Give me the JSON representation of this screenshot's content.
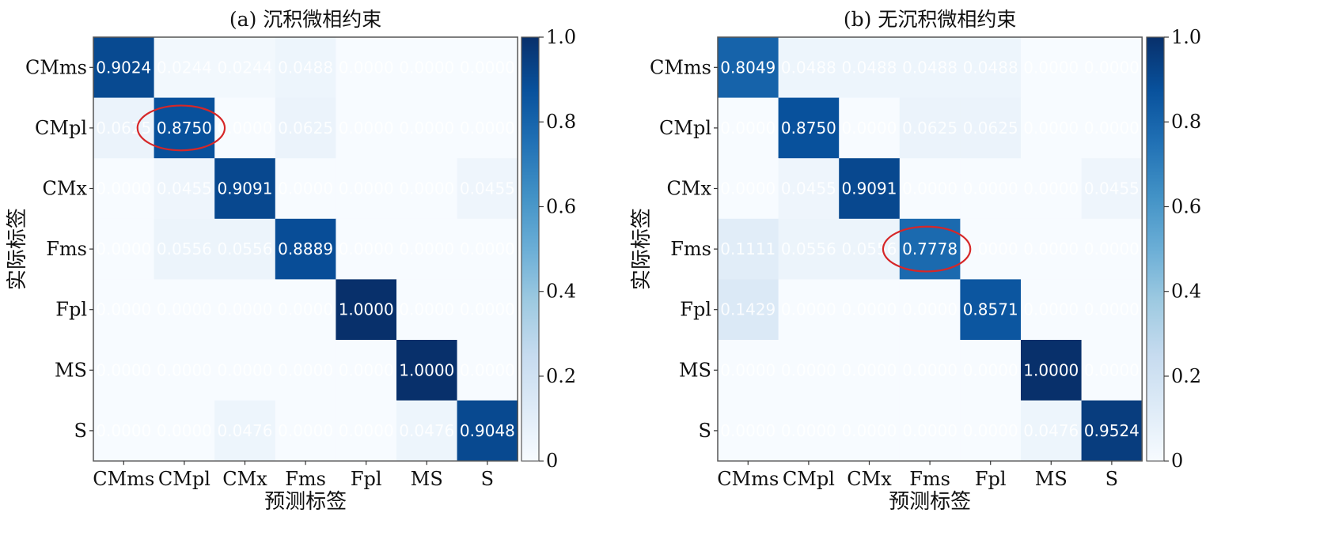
{
  "chart_data": [
    {
      "type": "heatmap",
      "title": "(a) 沉积微相约束",
      "xlabel": "预测标签",
      "ylabel": "实际标签",
      "x_categories": [
        "CMms",
        "CMpl",
        "CMx",
        "Fms",
        "Fpl",
        "MS",
        "S"
      ],
      "y_categories": [
        "CMms",
        "CMpl",
        "CMx",
        "Fms",
        "Fpl",
        "MS",
        "S"
      ],
      "values": [
        [
          0.9024,
          0.0244,
          0.0244,
          0.0488,
          0.0,
          0.0,
          0.0
        ],
        [
          0.0625,
          0.875,
          0.0,
          0.0625,
          0.0,
          0.0,
          0.0
        ],
        [
          0.0,
          0.0455,
          0.9091,
          0.0,
          0.0,
          0.0,
          0.0455
        ],
        [
          0.0,
          0.0556,
          0.0556,
          0.8889,
          0.0,
          0.0,
          0.0
        ],
        [
          0.0,
          0.0,
          0.0,
          0.0,
          1.0,
          0.0,
          0.0
        ],
        [
          0.0,
          0.0,
          0.0,
          0.0,
          0.0,
          1.0,
          0.0
        ],
        [
          0.0,
          0.0,
          0.0476,
          0.0,
          0.0,
          0.0476,
          0.9048
        ]
      ],
      "value_range": [
        0,
        1
      ],
      "colorbar_ticks": [
        "0",
        "0.2",
        "0.4",
        "0.6",
        "0.8",
        "1.0"
      ],
      "colormap": "Blues",
      "highlight": {
        "row": 1,
        "col": 1,
        "shape": "ellipse",
        "color": "#d62728"
      }
    },
    {
      "type": "heatmap",
      "title": "(b) 无沉积微相约束",
      "xlabel": "预测标签",
      "ylabel": "实际标签",
      "x_categories": [
        "CMms",
        "CMpl",
        "CMx",
        "Fms",
        "Fpl",
        "MS",
        "S"
      ],
      "y_categories": [
        "CMms",
        "CMpl",
        "CMx",
        "Fms",
        "Fpl",
        "MS",
        "S"
      ],
      "values": [
        [
          0.8049,
          0.0488,
          0.0488,
          0.0488,
          0.0488,
          0.0,
          0.0
        ],
        [
          0.0,
          0.875,
          0.0,
          0.0625,
          0.0625,
          0.0,
          0.0
        ],
        [
          0.0,
          0.0455,
          0.9091,
          0.0,
          0.0,
          0.0,
          0.0455
        ],
        [
          0.1111,
          0.0556,
          0.0556,
          0.7778,
          0.0,
          0.0,
          0.0
        ],
        [
          0.1429,
          0.0,
          0.0,
          0.0,
          0.8571,
          0.0,
          0.0
        ],
        [
          0.0,
          0.0,
          0.0,
          0.0,
          0.0,
          1.0,
          0.0
        ],
        [
          0.0,
          0.0,
          0.0,
          0.0,
          0.0,
          0.0476,
          0.9524
        ]
      ],
      "value_range": [
        0,
        1
      ],
      "colorbar_ticks": [
        "0",
        "0.2",
        "0.4",
        "0.6",
        "0.8",
        "1.0"
      ],
      "colormap": "Blues",
      "highlight": {
        "row": 3,
        "col": 3,
        "shape": "ellipse",
        "color": "#d62728"
      }
    }
  ]
}
